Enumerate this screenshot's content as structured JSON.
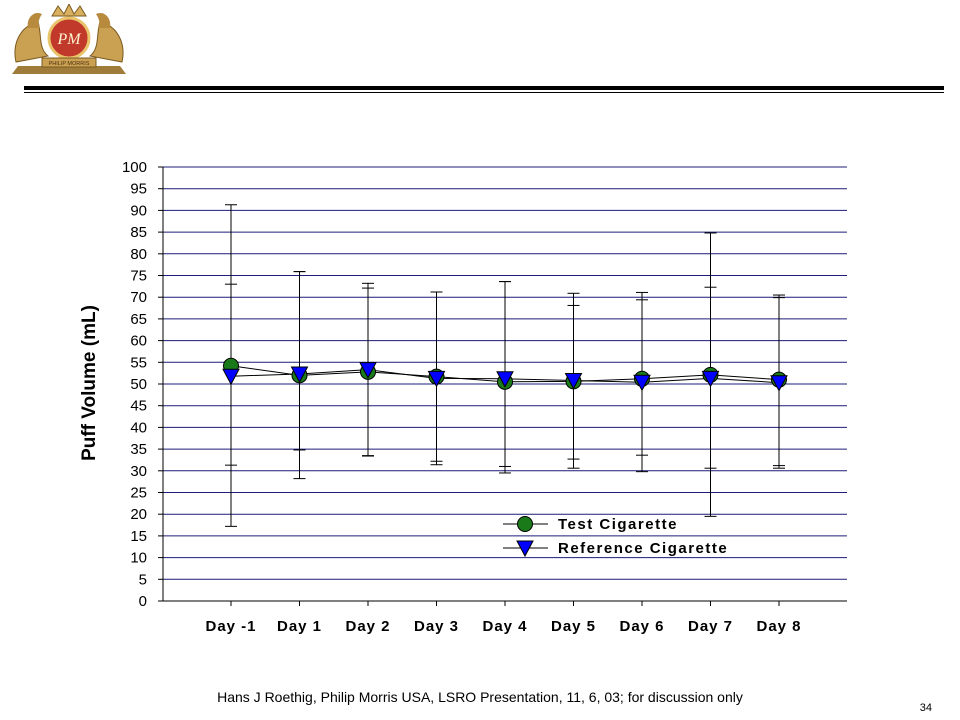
{
  "brand": {
    "logo_text": "PM",
    "logo_banner": "PHILIP MORRIS",
    "logo_color": "#c8963c"
  },
  "chart_data": {
    "type": "line",
    "categories": [
      "Day -1",
      "Day 1",
      "Day 2",
      "Day 3",
      "Day 4",
      "Day 5",
      "Day 6",
      "Day 7",
      "Day 8"
    ],
    "ylabel": "Puff Volume (mL)",
    "xlabel": "",
    "title": "",
    "ylim": [
      0,
      100
    ],
    "yticks": [
      0,
      5,
      10,
      15,
      20,
      25,
      30,
      35,
      40,
      45,
      50,
      55,
      60,
      65,
      70,
      75,
      80,
      85,
      90,
      95,
      100
    ],
    "grid": "horizontal",
    "legend_position": "bottom-right",
    "series": [
      {
        "name": "Test Cigarette",
        "marker": "circle",
        "color": "#1a7a1a",
        "values": [
          54.2,
          52.0,
          52.8,
          51.7,
          50.5,
          50.6,
          51.2,
          52.1,
          51.0
        ],
        "error_low": [
          17.2,
          28.2,
          33.5,
          32.2,
          29.5,
          32.7,
          33.6,
          19.5,
          30.6
        ],
        "error_high": [
          91.3,
          75.9,
          72.1,
          71.2,
          73.6,
          70.9,
          71.1,
          84.8,
          70.5
        ]
      },
      {
        "name": "Reference Cigarette",
        "marker": "triangle-down",
        "color": "#0000ff",
        "values": [
          51.8,
          52.3,
          53.3,
          51.3,
          51.2,
          50.8,
          50.4,
          51.3,
          50.3
        ],
        "error_low": [
          31.3,
          34.8,
          33.4,
          31.4,
          31.0,
          30.6,
          29.8,
          30.6,
          31.2
        ],
        "error_high": [
          73.0,
          75.9,
          73.2,
          71.2,
          73.6,
          68.1,
          69.4,
          72.3,
          69.9
        ]
      }
    ]
  },
  "footer": {
    "text": "Hans J Roethig, Philip Morris USA, LSRO Presentation, 11, 6, 03; for discussion only",
    "page_number": "34"
  }
}
